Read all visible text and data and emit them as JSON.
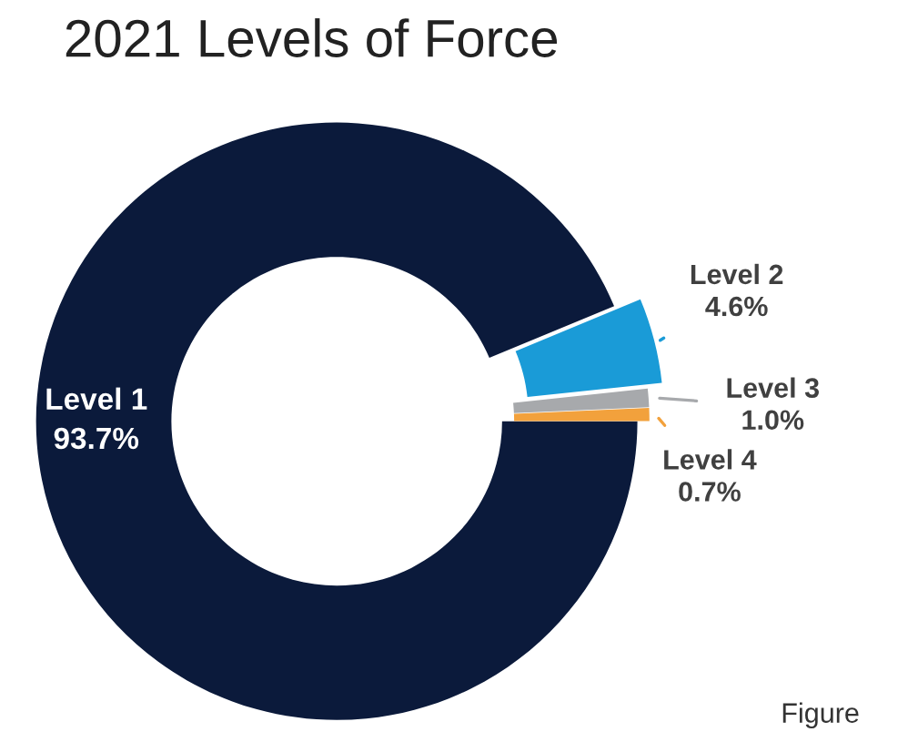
{
  "chart_data": {
    "type": "donut",
    "title": "2021 Levels of Force",
    "categories": [
      "Level 1",
      "Level 2",
      "Level 3",
      "Level 4"
    ],
    "values": [
      93.7,
      4.6,
      1.0,
      0.7
    ],
    "value_labels": [
      "93.7%",
      "4.6%",
      "1.0%",
      "0.7%"
    ],
    "colors": [
      "#0b1a3b",
      "#1a9bd7",
      "#a7a9ac",
      "#f2a13c"
    ],
    "annotations": [
      "Figure"
    ]
  }
}
